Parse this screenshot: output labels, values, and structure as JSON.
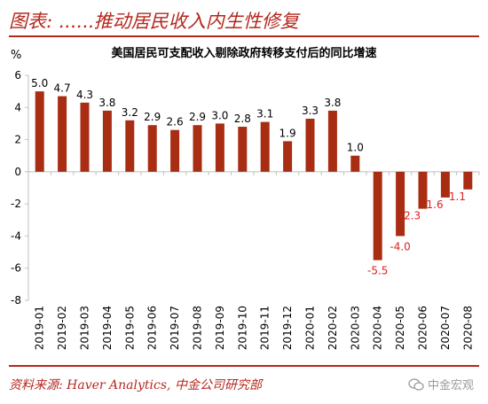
{
  "header": {
    "title": "图表: ......推动居民收入内生性修复"
  },
  "footer": {
    "source": "资料来源: Haver Analytics, 中金公司研究部"
  },
  "watermark": {
    "text": "中金宏观",
    "icon": "wechat-icon"
  },
  "colors": {
    "accent": "#b5281e",
    "bar": "#a82d12",
    "negative_label": "#e02020"
  },
  "chart_data": {
    "type": "bar",
    "title": "美国居民可支配收入剔除政府转移支付后的同比增速",
    "ylabel": "%",
    "xlabel": "",
    "ylim": [
      -8,
      6
    ],
    "yticks": [
      6,
      4,
      2,
      0,
      -2,
      -4,
      -6,
      -8
    ],
    "grid": false,
    "categories": [
      "2019-01",
      "2019-02",
      "2019-03",
      "2019-04",
      "2019-05",
      "2019-06",
      "2019-07",
      "2019-08",
      "2019-09",
      "2019-10",
      "2019-11",
      "2019-12",
      "2020-01",
      "2020-02",
      "2020-03",
      "2020-04",
      "2020-05",
      "2020-06",
      "2020-07",
      "2020-08"
    ],
    "values": [
      5.0,
      4.7,
      4.3,
      3.8,
      3.2,
      2.9,
      2.6,
      2.9,
      3.0,
      2.8,
      3.1,
      1.9,
      3.3,
      3.8,
      1.0,
      -5.5,
      -4.0,
      -2.3,
      -1.6,
      -1.1
    ],
    "data_labels": [
      "5.0",
      "4.7",
      "4.3",
      "3.8",
      "3.2",
      "2.9",
      "2.6",
      "2.9",
      "3.0",
      "2.8",
      "3.1",
      "1.9",
      "3.3",
      "3.8",
      "1.0",
      "-5.5",
      "-4.0",
      "-2.3",
      "-1.6",
      "-1.1"
    ]
  }
}
